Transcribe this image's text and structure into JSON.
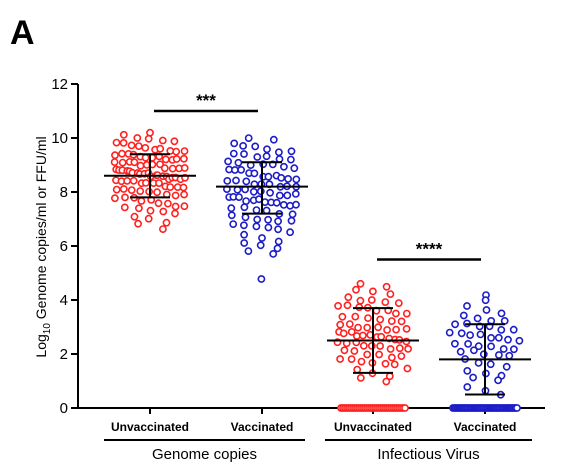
{
  "panel_label": "A",
  "colors": {
    "unvaccinated": "#ff2020",
    "vaccinated": "#1c1cc8",
    "axis": "#000000"
  },
  "chart_data": {
    "type": "scatter",
    "title": "",
    "ylabel_main": "Log",
    "ylabel_sub": "10",
    "ylabel_rest": " Genome copies/ml or  FFU/ml",
    "ylim": [
      0,
      12
    ],
    "yticks": [
      "0",
      "2",
      "4",
      "6",
      "8",
      "10",
      "12"
    ],
    "grid": false,
    "legend": "none",
    "categories": [
      "Unvaccinated",
      "Vaccinated",
      "Unvaccinated",
      "Vaccinated"
    ],
    "groups": [
      {
        "label": "Genome copies",
        "categories": [
          0,
          1
        ]
      },
      {
        "label": "Infectious Virus",
        "categories": [
          2,
          3
        ]
      }
    ],
    "significance": [
      {
        "between": [
          0,
          1
        ],
        "label": "***"
      },
      {
        "between": [
          2,
          3
        ],
        "label": "****"
      }
    ],
    "series": [
      {
        "category": 0,
        "color": "unvaccinated",
        "mean": 8.6,
        "sd_low": 7.8,
        "sd_high": 9.4,
        "values": [
          10.2,
          10.1,
          10.0,
          10.0,
          9.9,
          9.9,
          9.8,
          9.8,
          9.7,
          9.7,
          9.6,
          9.6,
          9.6,
          9.5,
          9.5,
          9.5,
          9.4,
          9.4,
          9.4,
          9.4,
          9.3,
          9.3,
          9.3,
          9.3,
          9.2,
          9.2,
          9.2,
          9.2,
          9.1,
          9.1,
          9.1,
          9.1,
          9.0,
          9.0,
          9.0,
          9.0,
          8.9,
          8.9,
          8.9,
          8.9,
          8.8,
          8.8,
          8.8,
          8.8,
          8.8,
          8.7,
          8.7,
          8.7,
          8.7,
          8.7,
          8.6,
          8.6,
          8.6,
          8.6,
          8.6,
          8.5,
          8.5,
          8.5,
          8.5,
          8.5,
          8.4,
          8.4,
          8.4,
          8.4,
          8.3,
          8.3,
          8.3,
          8.3,
          8.2,
          8.2,
          8.2,
          8.2,
          8.1,
          8.1,
          8.1,
          8.0,
          8.0,
          8.0,
          7.9,
          7.9,
          7.9,
          7.8,
          7.8,
          7.8,
          7.7,
          7.7,
          7.6,
          7.6,
          7.5,
          7.5,
          7.4,
          7.4,
          7.3,
          7.3,
          7.2,
          7.1,
          7.0,
          6.9,
          6.8,
          6.6
        ]
      },
      {
        "category": 1,
        "color": "vaccinated",
        "mean": 8.2,
        "sd_low": 7.2,
        "sd_high": 9.1,
        "values": [
          10.0,
          9.9,
          9.8,
          9.7,
          9.7,
          9.6,
          9.5,
          9.5,
          9.4,
          9.4,
          9.3,
          9.3,
          9.2,
          9.2,
          9.1,
          9.1,
          9.0,
          9.0,
          9.0,
          8.9,
          8.9,
          8.8,
          8.8,
          8.8,
          8.7,
          8.7,
          8.6,
          8.6,
          8.6,
          8.5,
          8.5,
          8.5,
          8.4,
          8.4,
          8.4,
          8.3,
          8.3,
          8.3,
          8.2,
          8.2,
          8.2,
          8.1,
          8.1,
          8.1,
          8.0,
          8.0,
          8.0,
          7.9,
          7.9,
          7.9,
          7.8,
          7.8,
          7.8,
          7.7,
          7.7,
          7.7,
          7.6,
          7.6,
          7.6,
          7.5,
          7.5,
          7.5,
          7.4,
          7.4,
          7.3,
          7.3,
          7.2,
          7.2,
          7.1,
          7.1,
          7.0,
          7.0,
          6.9,
          6.9,
          6.8,
          6.8,
          6.7,
          6.7,
          6.6,
          6.5,
          6.4,
          6.3,
          6.2,
          6.1,
          6.0,
          5.9,
          5.8,
          5.7,
          4.8
        ]
      },
      {
        "category": 2,
        "color": "unvaccinated",
        "mean": 2.5,
        "sd_low": 1.3,
        "sd_high": 3.7,
        "values": [
          4.6,
          4.5,
          4.4,
          4.3,
          4.2,
          4.1,
          4.0,
          4.0,
          3.9,
          3.9,
          3.8,
          3.8,
          3.7,
          3.7,
          3.6,
          3.6,
          3.5,
          3.5,
          3.4,
          3.4,
          3.3,
          3.3,
          3.2,
          3.2,
          3.1,
          3.1,
          3.0,
          3.0,
          3.0,
          2.9,
          2.9,
          2.9,
          2.8,
          2.8,
          2.8,
          2.7,
          2.7,
          2.7,
          2.6,
          2.6,
          2.6,
          2.5,
          2.5,
          2.5,
          2.4,
          2.4,
          2.4,
          2.3,
          2.3,
          2.3,
          2.2,
          2.2,
          2.2,
          2.1,
          2.1,
          2.0,
          2.0,
          1.9,
          1.9,
          1.8,
          1.8,
          1.7,
          1.7,
          1.6,
          1.6,
          1.5,
          1.4,
          1.3,
          1.2,
          1.1,
          1.0,
          0,
          0,
          0,
          0,
          0,
          0,
          0,
          0,
          0,
          0,
          0,
          0,
          0,
          0,
          0,
          0,
          0,
          0,
          0,
          0,
          0,
          0,
          0,
          0,
          0,
          0,
          0,
          0,
          0,
          0,
          0,
          0,
          0
        ]
      },
      {
        "category": 3,
        "color": "vaccinated",
        "mean": 1.8,
        "sd_low": 0.5,
        "sd_high": 3.1,
        "values": [
          4.2,
          4.0,
          3.8,
          3.6,
          3.5,
          3.4,
          3.3,
          3.2,
          3.2,
          3.1,
          3.1,
          3.0,
          3.0,
          2.9,
          2.9,
          2.8,
          2.8,
          2.7,
          2.7,
          2.6,
          2.6,
          2.5,
          2.5,
          2.4,
          2.4,
          2.3,
          2.3,
          2.2,
          2.2,
          2.1,
          2.1,
          2.0,
          2.0,
          1.9,
          1.8,
          1.7,
          1.6,
          1.5,
          1.4,
          1.3,
          1.2,
          1.1,
          1.0,
          0.8,
          0.6,
          0.5,
          0,
          0,
          0,
          0,
          0,
          0,
          0,
          0,
          0,
          0,
          0,
          0,
          0,
          0,
          0,
          0,
          0,
          0,
          0,
          0,
          0,
          0,
          0,
          0,
          0,
          0,
          0,
          0,
          0,
          0,
          0,
          0,
          0,
          0,
          0,
          0,
          0,
          0,
          0,
          0,
          0,
          0,
          0,
          0,
          0
        ]
      }
    ]
  }
}
